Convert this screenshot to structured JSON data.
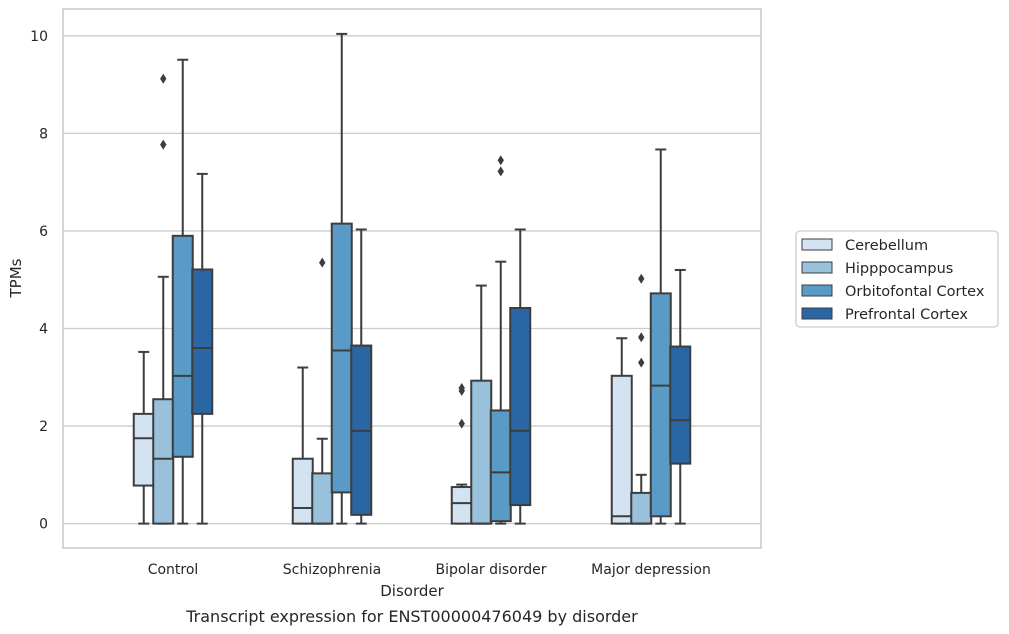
{
  "caption": "Transcript expression for ENST00000476049 by disorder",
  "chart_data": {
    "type": "boxplot",
    "xlabel": "Disorder",
    "ylabel": "TPMs",
    "ylim": [
      -0.5,
      10.55
    ],
    "yticks": [
      0,
      2,
      4,
      6,
      8,
      10
    ],
    "grid": "horizontal",
    "legend_position": "right",
    "categories": [
      "Control",
      "Schizophrenia",
      "Bipolar disorder",
      "Major depression"
    ],
    "series": [
      {
        "name": "Cerebellum",
        "color": "#d3e3f1",
        "boxes": [
          {
            "whislo": 0,
            "q1": 0.78,
            "med": 1.75,
            "q3": 2.25,
            "whishi": 3.52,
            "fliers": []
          },
          {
            "whislo": 0,
            "q1": 0,
            "med": 0.32,
            "q3": 1.33,
            "whishi": 3.2,
            "fliers": []
          },
          {
            "whislo": 0,
            "q1": 0,
            "med": 0.42,
            "q3": 0.75,
            "whishi": 0.8,
            "fliers": [
              2.05,
              2.72,
              2.78
            ]
          },
          {
            "whislo": 0,
            "q1": 0,
            "med": 0.15,
            "q3": 3.03,
            "whishi": 3.8,
            "fliers": []
          }
        ]
      },
      {
        "name": "Hipppocampus",
        "color": "#9ac1dc",
        "boxes": [
          {
            "whislo": 0,
            "q1": 0,
            "med": 1.33,
            "q3": 2.55,
            "whishi": 5.06,
            "fliers": [
              7.77,
              9.12
            ]
          },
          {
            "whislo": 0,
            "q1": 0,
            "med": 0,
            "q3": 1.03,
            "whishi": 1.74,
            "fliers": [
              5.35
            ]
          },
          {
            "whislo": 0,
            "q1": 0,
            "med": 0,
            "q3": 2.93,
            "whishi": 4.88,
            "fliers": []
          },
          {
            "whislo": 0,
            "q1": 0,
            "med": 0,
            "q3": 0.63,
            "whishi": 1.0,
            "fliers": [
              3.3,
              3.82,
              5.02
            ]
          }
        ]
      },
      {
        "name": "Orbitofontal Cortex",
        "color": "#5a9ac6",
        "boxes": [
          {
            "whislo": 0,
            "q1": 1.37,
            "med": 3.03,
            "q3": 5.9,
            "whishi": 9.51,
            "fliers": []
          },
          {
            "whislo": 0,
            "q1": 0.64,
            "med": 3.55,
            "q3": 6.15,
            "whishi": 10.04,
            "fliers": []
          },
          {
            "whislo": 0,
            "q1": 0.05,
            "med": 1.05,
            "q3": 2.32,
            "whishi": 5.37,
            "fliers": [
              7.22,
              7.45
            ]
          },
          {
            "whislo": 0,
            "q1": 0.15,
            "med": 2.83,
            "q3": 4.72,
            "whishi": 7.67,
            "fliers": []
          }
        ]
      },
      {
        "name": "Prefrontal Cortex",
        "color": "#2b66a4",
        "boxes": [
          {
            "whislo": 0,
            "q1": 2.25,
            "med": 3.6,
            "q3": 5.21,
            "whishi": 7.17,
            "fliers": []
          },
          {
            "whislo": 0,
            "q1": 0.18,
            "med": 1.9,
            "q3": 3.65,
            "whishi": 6.03,
            "fliers": []
          },
          {
            "whislo": 0,
            "q1": 0.38,
            "med": 1.9,
            "q3": 4.42,
            "whishi": 6.03,
            "fliers": []
          },
          {
            "whislo": 0,
            "q1": 1.23,
            "med": 2.12,
            "q3": 3.63,
            "whishi": 5.2,
            "fliers": []
          }
        ]
      }
    ],
    "colors": {
      "line": "#3d3d3d",
      "grid": "#cccccc",
      "frame": "#cccccc",
      "text": "#262626"
    }
  }
}
